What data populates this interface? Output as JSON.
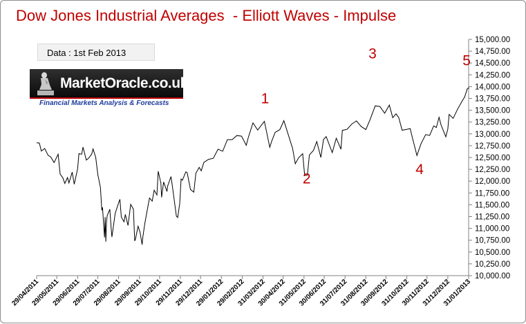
{
  "chart_data": {
    "type": "line",
    "title": "Dow Jones Industrial Averages  - Elliott Waves - Impulse",
    "annotation": "Data : 1st Feb 2013",
    "logo": {
      "name": "MarketOracle.co.uk",
      "tagline": "Financial Markets Analysis & Forecasts"
    },
    "ylim": [
      10000,
      15000
    ],
    "ytick_labels": [
      "15,000.00",
      "14,750.00",
      "14,500.00",
      "14,250.00",
      "14,000.00",
      "13,750.00",
      "13,500.00",
      "13,250.00",
      "13,000.00",
      "12,750.00",
      "12,500.00",
      "12,250.00",
      "12,000.00",
      "11,750.00",
      "11,500.00",
      "11,250.00",
      "11,000.00",
      "10,750.00",
      "10,500.00",
      "10,250.00",
      "10,000.00"
    ],
    "xtick_labels": [
      "29/04/2011",
      "29/05/2011",
      "29/06/2011",
      "29/07/2011",
      "29/08/2011",
      "29/09/2011",
      "29/10/2011",
      "29/11/2011",
      "29/12/2011",
      "29/01/2012",
      "29/02/2012",
      "31/03/2012",
      "30/04/2012",
      "31/05/2012",
      "30/06/2012",
      "31/07/2012",
      "31/08/2012",
      "30/09/2012",
      "31/10/2012",
      "30/11/2012",
      "31/12/2012",
      "31/01/2013"
    ],
    "grid": false,
    "legend": "none",
    "line_color": "#000000",
    "label_color": "#c00000",
    "wave_labels": [
      {
        "text": "1",
        "x": "2012-04-03",
        "y": 13650
      },
      {
        "text": "2",
        "x": "2012-06-04",
        "y": 11950
      },
      {
        "text": "3",
        "x": "2012-09-10",
        "y": 14600
      },
      {
        "text": "4",
        "x": "2012-11-19",
        "y": 12150
      },
      {
        "text": "5",
        "x": "2013-01-28",
        "y": 14450
      }
    ],
    "series": [
      {
        "x": [
          "2011-04-29",
          "2011-05-03",
          "2011-05-06",
          "2011-05-11",
          "2011-05-16",
          "2011-05-20",
          "2011-05-25",
          "2011-05-31",
          "2011-06-03",
          "2011-06-07",
          "2011-06-10",
          "2011-06-14",
          "2011-06-16",
          "2011-06-21",
          "2011-06-24",
          "2011-06-29",
          "2011-07-01",
          "2011-07-05",
          "2011-07-07",
          "2011-07-12",
          "2011-07-15",
          "2011-07-20",
          "2011-07-22",
          "2011-07-26",
          "2011-07-29",
          "2011-08-02",
          "2011-08-04",
          "2011-08-05",
          "2011-08-08",
          "2011-08-09",
          "2011-08-10",
          "2011-08-11",
          "2011-08-12",
          "2011-08-16",
          "2011-08-18",
          "2011-08-19",
          "2011-08-24",
          "2011-08-29",
          "2011-08-31",
          "2011-09-02",
          "2011-09-06",
          "2011-09-08",
          "2011-09-12",
          "2011-09-16",
          "2011-09-20",
          "2011-09-22",
          "2011-09-23",
          "2011-09-27",
          "2011-09-30",
          "2011-10-03",
          "2011-10-04",
          "2011-10-07",
          "2011-10-11",
          "2011-10-14",
          "2011-10-18",
          "2011-10-21",
          "2011-10-25",
          "2011-10-27",
          "2011-10-31",
          "2011-11-01",
          "2011-11-04",
          "2011-11-09",
          "2011-11-10",
          "2011-11-15",
          "2011-11-18",
          "2011-11-23",
          "2011-11-25",
          "2011-11-28",
          "2011-11-30",
          "2011-12-02",
          "2011-12-07",
          "2011-12-09",
          "2011-12-14",
          "2011-12-19",
          "2011-12-22",
          "2011-12-27",
          "2011-12-30",
          "2012-01-03",
          "2012-01-10",
          "2012-01-17",
          "2012-01-24",
          "2012-01-31",
          "2012-02-07",
          "2012-02-14",
          "2012-02-21",
          "2012-02-28",
          "2012-03-06",
          "2012-03-09",
          "2012-03-16",
          "2012-03-23",
          "2012-03-30",
          "2012-04-02",
          "2012-04-05",
          "2012-04-10",
          "2012-04-13",
          "2012-04-18",
          "2012-04-25",
          "2012-05-01",
          "2012-05-07",
          "2012-05-14",
          "2012-05-18",
          "2012-05-23",
          "2012-05-29",
          "2012-06-01",
          "2012-06-05",
          "2012-06-08",
          "2012-06-14",
          "2012-06-19",
          "2012-06-25",
          "2012-06-29",
          "2012-07-03",
          "2012-07-12",
          "2012-07-18",
          "2012-07-25",
          "2012-07-27",
          "2012-08-03",
          "2012-08-10",
          "2012-08-17",
          "2012-08-24",
          "2012-08-31",
          "2012-09-06",
          "2012-09-14",
          "2012-09-21",
          "2012-09-28",
          "2012-10-05",
          "2012-10-10",
          "2012-10-15",
          "2012-10-19",
          "2012-10-24",
          "2012-10-31",
          "2012-11-05",
          "2012-11-08",
          "2012-11-15",
          "2012-11-21",
          "2012-11-28",
          "2012-12-04",
          "2012-12-10",
          "2012-12-14",
          "2012-12-18",
          "2012-12-21",
          "2012-12-28",
          "2012-12-31",
          "2013-01-02",
          "2013-01-08",
          "2013-01-15",
          "2013-01-22",
          "2013-01-25",
          "2013-01-29",
          "2013-02-01"
        ],
        "values": [
          12810,
          12807,
          12638,
          12690,
          12548,
          12512,
          12394,
          12570,
          12151,
          12070,
          11952,
          12076,
          11962,
          12190,
          11934,
          12261,
          12582,
          12569,
          12719,
          12446,
          12480,
          12572,
          12681,
          12501,
          12143,
          11867,
          11383,
          11444,
          10810,
          11240,
          10720,
          11143,
          11270,
          11405,
          10990,
          10817,
          11320,
          11540,
          11614,
          11240,
          11139,
          11295,
          11062,
          11509,
          11408,
          10734,
          10771,
          11045,
          10913,
          10655,
          10808,
          11103,
          11416,
          11644,
          11577,
          11808,
          11707,
          12209,
          11955,
          11657,
          11983,
          11780,
          11893,
          12096,
          11796,
          11257,
          11231,
          11523,
          12046,
          12019,
          12196,
          12184,
          11823,
          11766,
          12169,
          12291,
          12218,
          12398,
          12462,
          12482,
          12676,
          12633,
          12878,
          12878,
          12965,
          12952,
          12759,
          12922,
          13232,
          13080,
          13212,
          13264,
          13060,
          12716,
          12850,
          13032,
          13090,
          13279,
          13009,
          12695,
          12369,
          12496,
          12580,
          12119,
          12127,
          12554,
          12651,
          12837,
          12502,
          12880,
          12943,
          12604,
          12908,
          12676,
          13075,
          13096,
          13207,
          13275,
          13157,
          13090,
          13292,
          13593,
          13579,
          13437,
          13610,
          13344,
          13424,
          13343,
          13077,
          13096,
          13112,
          12933,
          12542,
          12788,
          12985,
          12966,
          13170,
          13135,
          13351,
          13190,
          12938,
          13104,
          13412,
          13329,
          13534,
          13712,
          13780,
          13954,
          13979
        ]
      }
    ]
  }
}
